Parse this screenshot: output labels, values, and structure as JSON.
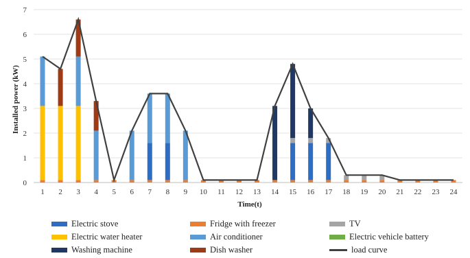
{
  "chart_data": {
    "type": "bar",
    "stacked": true,
    "ylabel": "Installed power (kW)",
    "xlabel": "Time(t)",
    "ylim": [
      0,
      7
    ],
    "yticks": [
      0,
      1,
      2,
      3,
      4,
      5,
      6,
      7
    ],
    "categories": [
      "1",
      "2",
      "3",
      "4",
      "5",
      "6",
      "7",
      "8",
      "9",
      "10",
      "11",
      "12",
      "13",
      "14",
      "15",
      "16",
      "17",
      "18",
      "19",
      "20",
      "21",
      "22",
      "23",
      "24"
    ],
    "grid": "horizontal",
    "legend_position": "bottom",
    "series": [
      {
        "name": "Fridge with freezer",
        "color": "#ED7D31",
        "values": [
          0.1,
          0.1,
          0.1,
          0.1,
          0.1,
          0.1,
          0.1,
          0.1,
          0.1,
          0.1,
          0.1,
          0.1,
          0.1,
          0.1,
          0.1,
          0.1,
          0.1,
          0.1,
          0.1,
          0.1,
          0.1,
          0.1,
          0.1,
          0.1
        ]
      },
      {
        "name": "Electric stove",
        "color": "#2E6DC4",
        "values": [
          0,
          0,
          0,
          0,
          0,
          0,
          1.5,
          1.5,
          0,
          0,
          0,
          0,
          0,
          0,
          1.5,
          1.5,
          1.5,
          0,
          0,
          0,
          0,
          0,
          0,
          0
        ]
      },
      {
        "name": "TV",
        "color": "#A5A5A5",
        "values": [
          0,
          0,
          0,
          0,
          0,
          0,
          0,
          0,
          0,
          0,
          0,
          0,
          0,
          0,
          0.2,
          0.2,
          0.2,
          0.2,
          0.2,
          0.2,
          0,
          0,
          0,
          0
        ]
      },
      {
        "name": "Electric water heater",
        "color": "#FFC000",
        "values": [
          3.0,
          3.0,
          3.0,
          0,
          0,
          0,
          0,
          0,
          0,
          0,
          0,
          0,
          0,
          0,
          0,
          0,
          0,
          0,
          0,
          0,
          0,
          0,
          0,
          0
        ]
      },
      {
        "name": "Air conditioner",
        "color": "#5B9BD5",
        "values": [
          2.0,
          0,
          2.0,
          2.0,
          0,
          2.0,
          2.0,
          2.0,
          2.0,
          0,
          0,
          0,
          0,
          0,
          0,
          0,
          0,
          0,
          0,
          0,
          0,
          0,
          0,
          0
        ]
      },
      {
        "name": "Electric vehicle battery",
        "color": "#70AD47",
        "values": [
          0,
          0,
          0,
          0,
          0,
          0,
          0,
          0,
          0,
          0,
          0,
          0,
          0,
          0,
          0,
          0,
          0,
          0,
          0,
          0,
          0,
          0,
          0,
          0
        ]
      },
      {
        "name": "Washing machine",
        "color": "#1F3864",
        "values": [
          0,
          0,
          0,
          0,
          0,
          0,
          0,
          0,
          0,
          0,
          0,
          0,
          0,
          3.0,
          3.0,
          1.2,
          0,
          0,
          0,
          0,
          0,
          0,
          0,
          0
        ]
      },
      {
        "name": "Dish washer",
        "color": "#9E3B16",
        "values": [
          0,
          1.5,
          1.5,
          1.2,
          0,
          0,
          0,
          0,
          0,
          0,
          0,
          0,
          0,
          0,
          0,
          0,
          0,
          0,
          0,
          0,
          0,
          0,
          0,
          0
        ]
      }
    ],
    "load_curve": {
      "name": "load curve",
      "color": "#404040",
      "values": [
        5.1,
        4.6,
        6.6,
        3.3,
        0.1,
        2.1,
        3.6,
        3.6,
        2.1,
        0.1,
        0.1,
        0.1,
        0.1,
        3.1,
        4.8,
        3.0,
        1.8,
        0.3,
        0.3,
        0.3,
        0.1,
        0.1,
        0.1,
        0.1
      ]
    }
  },
  "legend": [
    {
      "label": "Electric stove",
      "color": "#2E6DC4",
      "kind": "swatch"
    },
    {
      "label": "Fridge with freezer",
      "color": "#ED7D31",
      "kind": "swatch"
    },
    {
      "label": "TV",
      "color": "#A5A5A5",
      "kind": "swatch"
    },
    {
      "label": "Electric water heater",
      "color": "#FFC000",
      "kind": "swatch"
    },
    {
      "label": "Air conditioner",
      "color": "#5B9BD5",
      "kind": "swatch"
    },
    {
      "label": "Electric vehicle battery",
      "color": "#70AD47",
      "kind": "swatch"
    },
    {
      "label": "Washing machine",
      "color": "#1F3864",
      "kind": "swatch"
    },
    {
      "label": "Dish washer",
      "color": "#9E3B16",
      "kind": "swatch"
    },
    {
      "label": "load curve",
      "color": "#404040",
      "kind": "line"
    }
  ]
}
